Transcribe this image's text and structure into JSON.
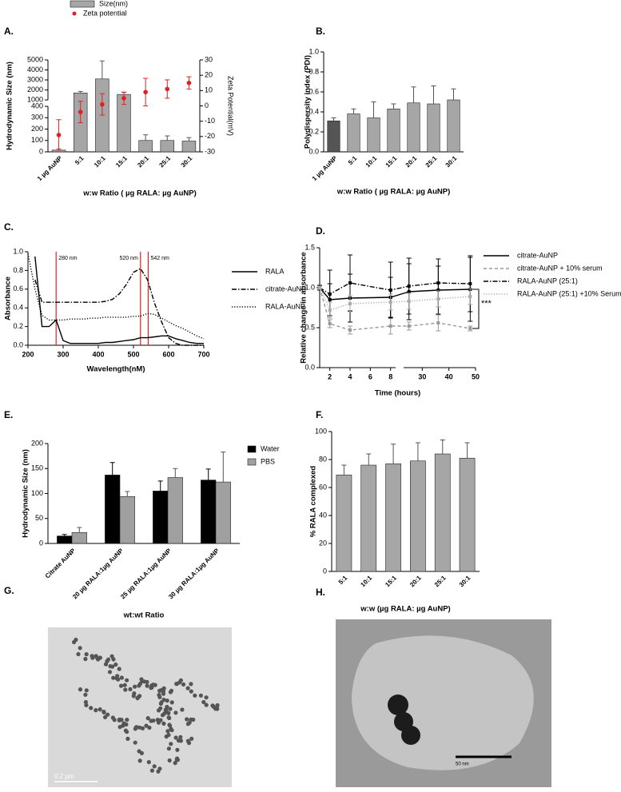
{
  "chart_data": [
    {
      "type": "bar",
      "label": "A.",
      "categories": [
        "1 µg AuNP",
        "5:1",
        "10:1",
        "15:1",
        "20:1",
        "25:1",
        "30:1"
      ],
      "series": [
        {
          "name": "Size(nm)",
          "color": "#a6a6a6",
          "values": [
            15,
            1700,
            3100,
            1550,
            100,
            100,
            95
          ],
          "errors": [
            10,
            150,
            1800,
            200,
            50,
            40,
            30
          ]
        },
        {
          "name": "Zeta potential",
          "type": "scatter",
          "axis": "y2",
          "color": "#e02020",
          "values": [
            -19,
            -4,
            1,
            5,
            9,
            11,
            15
          ],
          "errors": [
            10,
            7,
            7,
            4,
            9,
            6,
            4
          ]
        }
      ],
      "ylim": [
        0,
        5000
      ],
      "ybreak": [
        400,
        1000
      ],
      "yticks": [
        0,
        100,
        200,
        300,
        400,
        1000,
        2000,
        3000,
        4000,
        5000
      ],
      "y2lim": [
        -30,
        30
      ],
      "y2ticks": [
        -30,
        -20,
        -10,
        0,
        10,
        20,
        30
      ],
      "xlabel": "w:w Ratio ( µg RALA: µg AuNP)",
      "ylabel": "Hydrodynamic Size (nm)",
      "y2label": "Zeta Potential(mV)"
    },
    {
      "type": "bar",
      "label": "B.",
      "categories": [
        "1 µg AuNP",
        "5:1",
        "10:1",
        "15:1",
        "20:1",
        "25:1",
        "30:1"
      ],
      "values": [
        0.31,
        0.38,
        0.34,
        0.43,
        0.49,
        0.48,
        0.52
      ],
      "errors": [
        0.03,
        0.05,
        0.16,
        0.05,
        0.16,
        0.18,
        0.11
      ],
      "colors": [
        "#555555",
        "#a6a6a6",
        "#a6a6a6",
        "#a6a6a6",
        "#a6a6a6",
        "#a6a6a6",
        "#a6a6a6"
      ],
      "ylim": [
        0,
        1
      ],
      "yticks": [
        {
          "value": 0,
          "label": "0.0"
        },
        {
          "value": 0.2,
          "label": "0.2"
        },
        {
          "value": 0.4,
          "label": "0.4"
        },
        {
          "value": 0.6,
          "label": "0.6"
        },
        {
          "value": 0.8,
          "label": "0.8"
        },
        {
          "value": 1,
          "label": "1.0"
        }
      ],
      "xlabel": "w:w Ratio ( µg RALA: µg AuNP)",
      "ylabel": "Polydispersity index (PDI)"
    },
    {
      "type": "line",
      "label": "C.",
      "x": [
        200,
        220,
        240,
        260,
        280,
        300,
        320,
        340,
        360,
        380,
        400,
        420,
        440,
        460,
        480,
        500,
        520,
        540,
        560,
        580,
        600,
        620,
        640,
        660,
        680,
        700
      ],
      "series": [
        {
          "name": "RALA",
          "color": "#000000",
          "style": "solid",
          "values": [
            null,
            0.95,
            0.2,
            0.2,
            0.27,
            0.05,
            0.02,
            0.02,
            0.02,
            0.02,
            0.02,
            0.03,
            0.03,
            0.04,
            0.05,
            0.06,
            0.08,
            0.08,
            0.09,
            0.1,
            0.1,
            0.07,
            0.05,
            0.03,
            0.02,
            0.02
          ]
        },
        {
          "name": "citrate-AuNP",
          "color": "#000000",
          "style": "dashdot",
          "values": [
            null,
            0.7,
            0.46,
            0.46,
            0.46,
            0.46,
            0.46,
            0.46,
            0.46,
            0.46,
            0.46,
            0.47,
            0.49,
            0.55,
            0.65,
            0.78,
            0.82,
            0.7,
            0.45,
            0.25,
            0.08,
            0.02,
            0,
            0,
            0,
            0
          ]
        },
        {
          "name": "RALA-AuNP",
          "color": "#000000",
          "style": "dotted",
          "values": [
            0.98,
            0.6,
            0.32,
            0.27,
            0.27,
            0.27,
            0.28,
            0.28,
            0.28,
            0.29,
            0.29,
            0.3,
            0.3,
            0.3,
            0.3,
            0.31,
            0.31,
            0.34,
            0.33,
            0.29,
            0.25,
            0.21,
            0.18,
            0.14,
            0.1,
            0.07
          ]
        }
      ],
      "xlim": [
        200,
        700
      ],
      "xticks": [
        200,
        300,
        400,
        500,
        600,
        700
      ],
      "ylim": [
        0,
        1
      ],
      "yticks": [
        {
          "value": 0,
          "label": "0.0"
        },
        {
          "value": 0.2,
          "label": "0.2"
        },
        {
          "value": 0.4,
          "label": "0.4"
        },
        {
          "value": 0.6,
          "label": "0.6"
        },
        {
          "value": 0.8,
          "label": "0.8"
        },
        {
          "value": 1,
          "label": "1.0"
        }
      ],
      "annotations": [
        {
          "text": "280 nm",
          "x": 280
        },
        {
          "text": "520 nm",
          "x": 520
        },
        {
          "text": "542 nm",
          "x": 542
        }
      ],
      "annotation_color": "#e02020",
      "xlabel": "Wavelength(nM)",
      "ylabel": "Absorbance"
    },
    {
      "type": "line",
      "label": "D.",
      "markers": true,
      "x": [
        1,
        2,
        4,
        8,
        25,
        36,
        48
      ],
      "series": [
        {
          "name": "citrate-AuNP",
          "color": "#000000",
          "style": "solid",
          "values": [
            1.0,
            0.85,
            0.87,
            0.88,
            0.95,
            0.97,
            0.98
          ],
          "errors": [
            0.03,
            0.2,
            0.3,
            0.25,
            0.35,
            0.3,
            0.4
          ]
        },
        {
          "name": "citrate-AuNP + 10% serum",
          "color": "#999999",
          "style": "dashed",
          "values": [
            1.0,
            0.55,
            0.47,
            0.52,
            0.52,
            0.56,
            0.49
          ],
          "errors": [
            0.02,
            0.05,
            0.05,
            0.1,
            0.05,
            0.1,
            0.03
          ]
        },
        {
          "name": "RALA-AuNP (25:1)",
          "color": "#000000",
          "style": "dashdot",
          "values": [
            1.0,
            0.92,
            1.06,
            0.97,
            1.02,
            1.06,
            1.05
          ],
          "errors": [
            0.02,
            0.3,
            0.35,
            0.35,
            0.35,
            0.3,
            0.35
          ]
        },
        {
          "name": "RALA-AuNP (25:1) +10% Serum",
          "color": "#aaaaaa",
          "style": "dotted",
          "values": [
            1.0,
            0.72,
            0.8,
            0.82,
            0.83,
            0.86,
            0.89
          ],
          "errors": [
            0.02,
            0.1,
            0.1,
            0.1,
            0.1,
            0.1,
            0.1
          ]
        }
      ],
      "xlim": [
        1,
        50
      ],
      "xbreak": [
        8.5,
        23
      ],
      "xticks": [
        2,
        4,
        6,
        8,
        30,
        40,
        50
      ],
      "ylim": [
        0,
        1.5
      ],
      "yticks": [
        {
          "value": 0,
          "label": "0.0"
        },
        {
          "value": 0.5,
          "label": "0.5"
        },
        {
          "value": 1,
          "label": "1.0"
        },
        {
          "value": 1.5,
          "label": "1.5"
        }
      ],
      "annotations": [
        {
          "text": "***"
        }
      ],
      "xlabel": "Time (hours)",
      "ylabel": "Relative change in absorbance"
    },
    {
      "type": "bar",
      "label": "E.",
      "categories": [
        "Citrate AuNP",
        "20 µg RALA:1µg AuNP",
        "25 µg RALA:1µg AuNP",
        "30 µg RALA:1µg AuNP"
      ],
      "series": [
        {
          "name": "Water",
          "color": "#000000",
          "values": [
            15,
            137,
            105,
            127
          ],
          "errors": [
            3,
            25,
            20,
            22
          ]
        },
        {
          "name": "PBS",
          "color": "#a0a0a0",
          "values": [
            22,
            94,
            132,
            123
          ],
          "errors": [
            10,
            10,
            18,
            60
          ]
        }
      ],
      "ylim": [
        0,
        200
      ],
      "yticks": [
        0,
        50,
        100,
        150,
        200
      ],
      "xlabel": "wt:wt Ratio",
      "ylabel": "Hydrodynamic Size (nm)"
    },
    {
      "type": "bar",
      "label": "F.",
      "categories": [
        "5:1",
        "10:1",
        "15:1",
        "20:1",
        "25:1",
        "30:1"
      ],
      "values": [
        69,
        76,
        77,
        79,
        84,
        81
      ],
      "errors": [
        7,
        8,
        14,
        13,
        10,
        11
      ],
      "color": "#a6a6a6",
      "ylim": [
        0,
        100
      ],
      "yticks": [
        0,
        20,
        40,
        60,
        80,
        100
      ],
      "xlabel": "w:w (µg RALA: µg AuNP)",
      "ylabel": "% RALA complexed"
    }
  ],
  "images": [
    {
      "label": "G.",
      "scale_bar": "0.2 µm"
    },
    {
      "label": "H.",
      "scale_bar": "50 nm"
    }
  ]
}
